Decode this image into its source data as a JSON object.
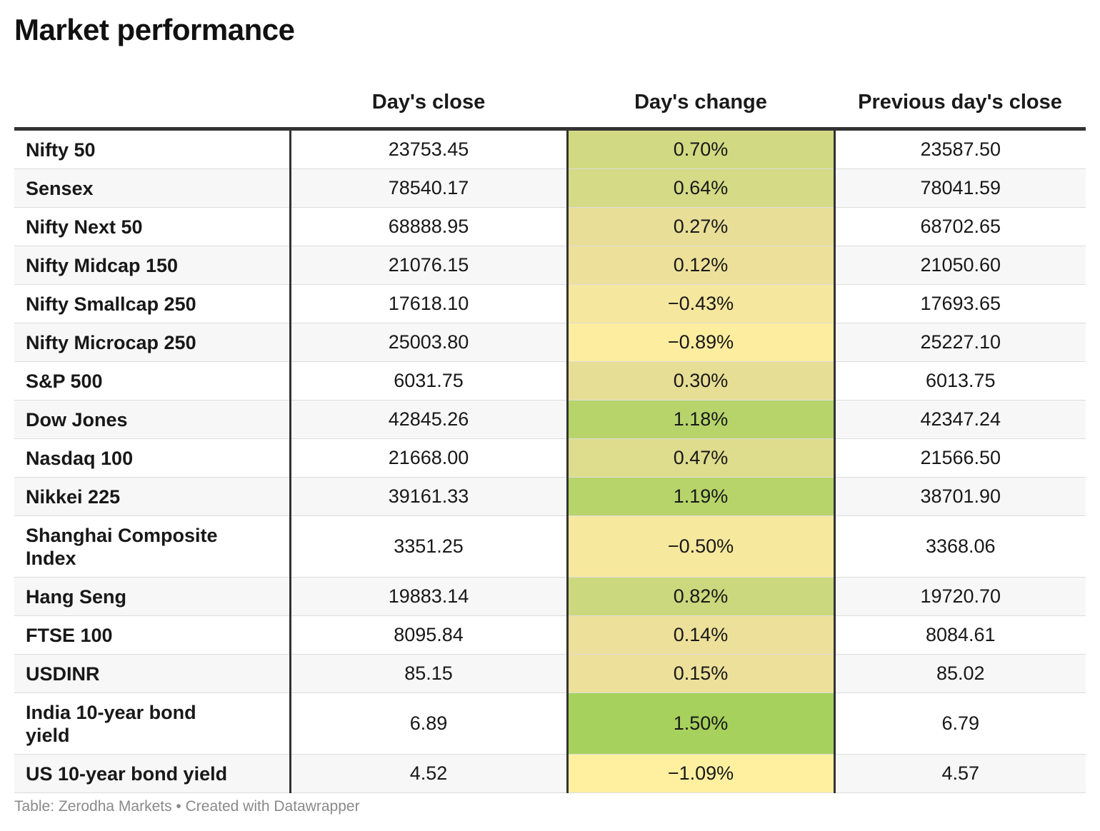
{
  "title": "Market performance",
  "source": "Table: Zerodha Markets • Created with Datawrapper",
  "colors": {
    "scale_low": "#fff0a0",
    "scale_mid": "#ecdf9a",
    "scale_high": "#a6d15c"
  },
  "chart_data": {
    "type": "table",
    "columns": [
      "",
      "Day's close",
      "Day's change",
      "Previous day's close"
    ],
    "rows": [
      {
        "name": "Nifty 50",
        "close": "23753.45",
        "change": "0.70%",
        "change_value": 0.7,
        "prev": "23587.50"
      },
      {
        "name": "Sensex",
        "close": "78540.17",
        "change": "0.64%",
        "change_value": 0.64,
        "prev": "78041.59"
      },
      {
        "name": "Nifty Next 50",
        "close": "68888.95",
        "change": "0.27%",
        "change_value": 0.27,
        "prev": "68702.65"
      },
      {
        "name": "Nifty Midcap 150",
        "close": "21076.15",
        "change": "0.12%",
        "change_value": 0.12,
        "prev": "21050.60"
      },
      {
        "name": "Nifty Smallcap 250",
        "close": "17618.10",
        "change": "−0.43%",
        "change_value": -0.43,
        "prev": "17693.65"
      },
      {
        "name": "Nifty Microcap 250",
        "close": "25003.80",
        "change": "−0.89%",
        "change_value": -0.89,
        "prev": "25227.10"
      },
      {
        "name": "S&P 500",
        "close": "6031.75",
        "change": "0.30%",
        "change_value": 0.3,
        "prev": "6013.75"
      },
      {
        "name": "Dow Jones",
        "close": "42845.26",
        "change": "1.18%",
        "change_value": 1.18,
        "prev": "42347.24"
      },
      {
        "name": "Nasdaq 100",
        "close": "21668.00",
        "change": "0.47%",
        "change_value": 0.47,
        "prev": "21566.50"
      },
      {
        "name": "Nikkei 225",
        "close": "39161.33",
        "change": "1.19%",
        "change_value": 1.19,
        "prev": "38701.90"
      },
      {
        "name": "Shanghai Composite Index",
        "close": "3351.25",
        "change": "−0.50%",
        "change_value": -0.5,
        "prev": "3368.06"
      },
      {
        "name": "Hang Seng",
        "close": "19883.14",
        "change": "0.82%",
        "change_value": 0.82,
        "prev": "19720.70"
      },
      {
        "name": "FTSE 100",
        "close": "8095.84",
        "change": "0.14%",
        "change_value": 0.14,
        "prev": "8084.61"
      },
      {
        "name": "USDINR",
        "close": "85.15",
        "change": "0.15%",
        "change_value": 0.15,
        "prev": "85.02"
      },
      {
        "name": "India 10-year bond yield",
        "close": "6.89",
        "change": "1.50%",
        "change_value": 1.5,
        "prev": "6.79"
      },
      {
        "name": "US 10-year bond yield",
        "close": "4.52",
        "change": "−1.09%",
        "change_value": -1.09,
        "prev": "4.57"
      }
    ]
  }
}
